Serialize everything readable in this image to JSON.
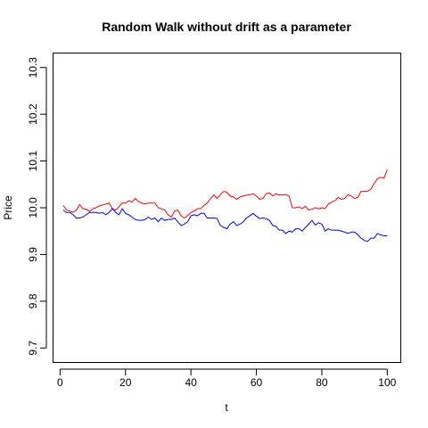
{
  "chart_data": {
    "type": "line",
    "title": "Random Walk without drift as a parameter",
    "xlabel": "t",
    "ylabel": "Price",
    "xlim": [
      -2,
      104
    ],
    "ylim": [
      9.67,
      10.33
    ],
    "x_ticks": [
      0,
      20,
      40,
      60,
      80,
      100
    ],
    "y_ticks": [
      9.7,
      9.8,
      9.9,
      10.0,
      10.1,
      10.2,
      10.3
    ],
    "x_tick_labels": [
      "0",
      "20",
      "40",
      "60",
      "80",
      "100"
    ],
    "y_tick_labels": [
      "9.7",
      "9.8",
      "9.9",
      "10.0",
      "10.1",
      "10.2",
      "10.3"
    ],
    "grid": false,
    "legend": "none",
    "series": [
      {
        "color": "#ff0000",
        "x": [
          1,
          2,
          3,
          4,
          5,
          6,
          7,
          8,
          9,
          10,
          11,
          12,
          13,
          14,
          15,
          16,
          17,
          18,
          19,
          20,
          21,
          22,
          23,
          24,
          25,
          26,
          27,
          28,
          29,
          30,
          31,
          32,
          33,
          34,
          35,
          36,
          37,
          38,
          39,
          40,
          41,
          42,
          43,
          44,
          45,
          46,
          47,
          48,
          49,
          50,
          51,
          52,
          53,
          54,
          55,
          56,
          57,
          58,
          59,
          60,
          61,
          62,
          63,
          64,
          65,
          66,
          67,
          68,
          69,
          70,
          71,
          72,
          73,
          74,
          75,
          76,
          77,
          78,
          79,
          80,
          81,
          82,
          83,
          84,
          85,
          86,
          87,
          88,
          89,
          90,
          91,
          92,
          93,
          94,
          95,
          96,
          97,
          98,
          99,
          100
        ],
        "values": [
          10.005,
          9.995,
          9.993,
          9.99,
          9.995,
          10.007,
          9.998,
          9.997,
          9.992,
          9.998,
          10.0,
          10.004,
          10.006,
          10.008,
          10.01,
          9.998,
          9.995,
          10.002,
          10.01,
          10.01,
          10.015,
          10.012,
          10.02,
          10.013,
          10.01,
          10.008,
          10.01,
          10.01,
          10.01,
          10.0,
          9.998,
          9.995,
          9.985,
          9.98,
          9.993,
          9.995,
          9.983,
          9.978,
          9.983,
          9.99,
          9.993,
          9.998,
          9.998,
          10.005,
          10.01,
          10.02,
          10.027,
          10.02,
          10.028,
          10.035,
          10.033,
          10.025,
          10.023,
          10.018,
          10.023,
          10.025,
          10.027,
          10.028,
          10.03,
          10.025,
          10.018,
          10.02,
          10.03,
          10.032,
          10.025,
          10.03,
          10.027,
          10.028,
          10.028,
          10.025,
          10.0,
          10.0,
          10.002,
          9.998,
          10.003,
          9.995,
          9.997,
          10.0,
          9.998,
          10.0,
          9.998,
          10.008,
          10.012,
          10.015,
          10.022,
          10.018,
          10.02,
          10.028,
          10.025,
          10.02,
          10.022,
          10.035,
          10.035,
          10.035,
          10.04,
          10.052,
          10.062,
          10.065,
          10.063,
          10.082
        ]
      },
      {
        "color": "#0000ff",
        "x": [
          1,
          2,
          3,
          4,
          5,
          6,
          7,
          8,
          9,
          10,
          11,
          12,
          13,
          14,
          15,
          16,
          17,
          18,
          19,
          20,
          21,
          22,
          23,
          24,
          25,
          26,
          27,
          28,
          29,
          30,
          31,
          32,
          33,
          34,
          35,
          36,
          37,
          38,
          39,
          40,
          41,
          42,
          43,
          44,
          45,
          46,
          47,
          48,
          49,
          50,
          51,
          52,
          53,
          54,
          55,
          56,
          57,
          58,
          59,
          60,
          61,
          62,
          63,
          64,
          65,
          66,
          67,
          68,
          69,
          70,
          71,
          72,
          73,
          74,
          75,
          76,
          77,
          78,
          79,
          80,
          81,
          82,
          83,
          84,
          85,
          86,
          87,
          88,
          89,
          90,
          91,
          92,
          93,
          94,
          95,
          96,
          97,
          98,
          99,
          100
        ],
        "values": [
          9.995,
          9.99,
          9.99,
          9.985,
          9.978,
          9.978,
          9.98,
          9.985,
          9.99,
          9.99,
          9.99,
          9.988,
          9.99,
          9.985,
          9.99,
          9.998,
          9.99,
          9.985,
          9.998,
          9.988,
          9.985,
          9.98,
          9.975,
          9.973,
          9.973,
          9.975,
          9.98,
          9.975,
          9.978,
          9.97,
          9.978,
          9.973,
          9.975,
          9.975,
          9.978,
          9.97,
          9.962,
          9.965,
          9.97,
          9.983,
          9.985,
          9.983,
          9.988,
          9.988,
          9.978,
          9.978,
          9.978,
          9.977,
          9.962,
          9.958,
          9.955,
          9.965,
          9.97,
          9.962,
          9.965,
          9.97,
          9.978,
          9.983,
          9.988,
          9.982,
          9.977,
          9.978,
          9.977,
          9.973,
          9.962,
          9.96,
          9.952,
          9.952,
          9.945,
          9.95,
          9.948,
          9.955,
          9.955,
          9.95,
          9.958,
          9.965,
          9.973,
          9.963,
          9.968,
          9.965,
          9.95,
          9.955,
          9.952,
          9.952,
          9.952,
          9.95,
          9.948,
          9.945,
          9.948,
          9.948,
          9.942,
          9.935,
          9.93,
          9.928,
          9.935,
          9.935,
          9.945,
          9.942,
          9.94,
          9.94
        ]
      }
    ]
  }
}
